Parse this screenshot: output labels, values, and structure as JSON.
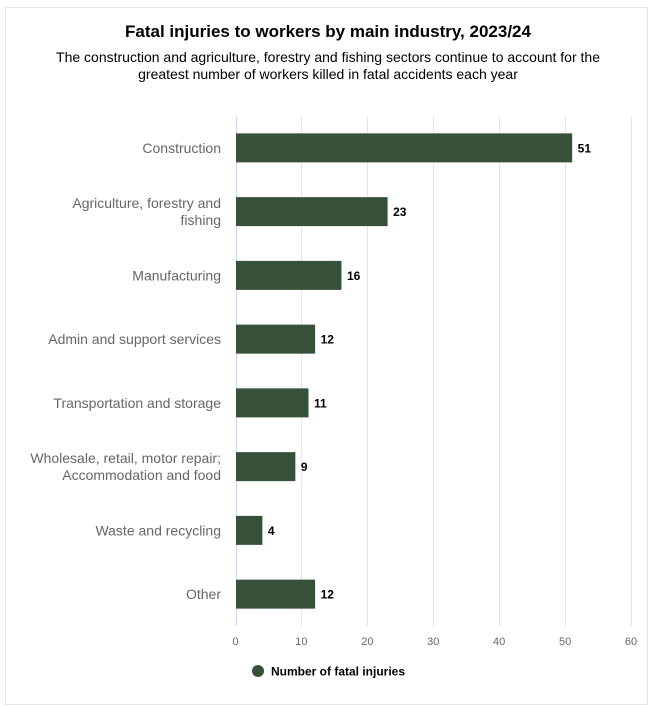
{
  "chart_data": {
    "type": "bar",
    "orientation": "horizontal",
    "title": "Fatal injuries to workers by main industry, 2023/24",
    "subtitle": "The construction and agriculture, forestry and fishing sectors continue to account for the greatest number of workers killed in fatal accidents each year",
    "categories": [
      [
        "Construction"
      ],
      [
        "Agriculture, forestry and",
        "fishing"
      ],
      [
        "Manufacturing"
      ],
      [
        "Admin and support services"
      ],
      [
        "Transportation and storage"
      ],
      [
        "Wholesale, retail, motor repair;",
        "Accommodation and food"
      ],
      [
        "Waste and recycling"
      ],
      [
        "Other"
      ]
    ],
    "series": [
      {
        "name": "Number of fatal injuries",
        "values": [
          51,
          23,
          16,
          12,
          11,
          9,
          4,
          12
        ],
        "color": "#36503a"
      }
    ],
    "xlabel": "",
    "ylabel": "",
    "xlim": [
      0,
      60
    ],
    "xticks": [
      0,
      10,
      20,
      30,
      40,
      50,
      60
    ],
    "grid": true,
    "data_labels": true,
    "legend": {
      "position": "bottom-left",
      "marker": "circle"
    }
  }
}
